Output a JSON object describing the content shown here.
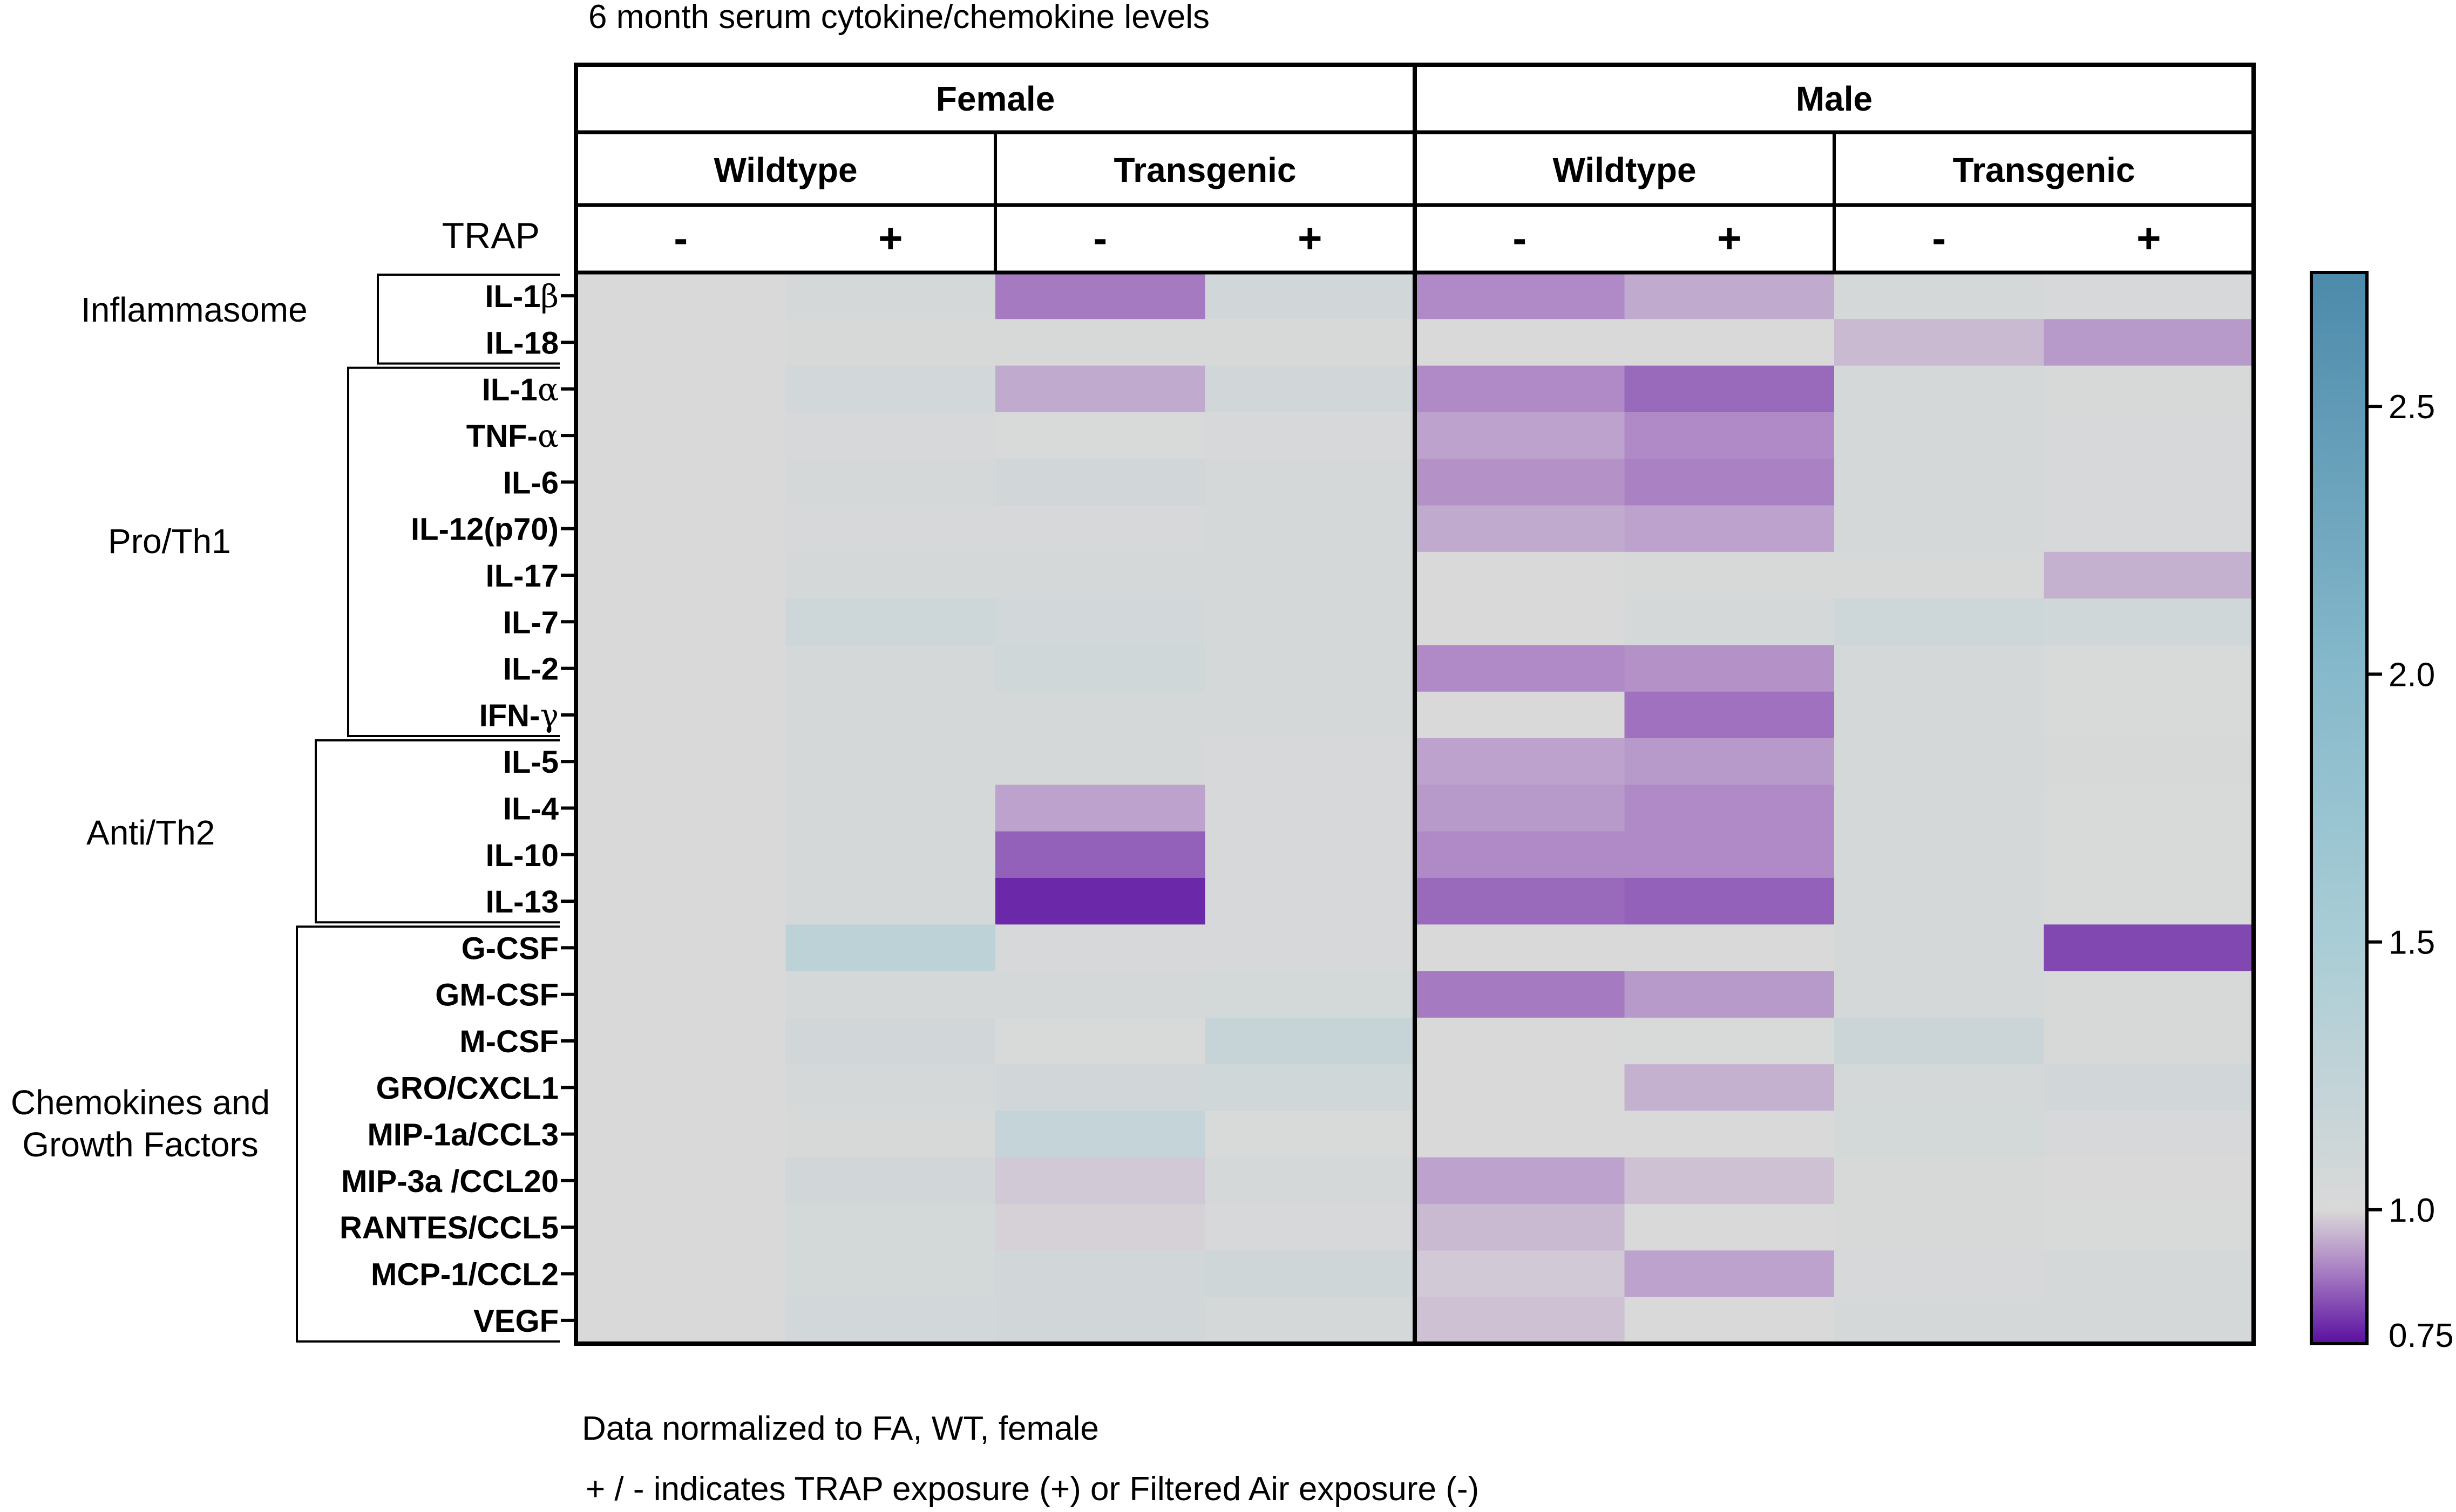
{
  "chart_data": {
    "type": "heatmap",
    "title": "6 month serum cytokine/chemokine levels",
    "row_label_header": "TRAP",
    "sexes": [
      "Female",
      "Male"
    ],
    "genotypes": [
      "Wildtype",
      "Transgenic",
      "Wildtype",
      "Transgenic"
    ],
    "exposures": [
      "-",
      "+",
      "-",
      "+",
      "-",
      "+",
      "-",
      "+"
    ],
    "rows": [
      "IL-1β",
      "IL-18",
      "IL-1α",
      "TNF-α",
      "IL-6",
      "IL-12(p70)",
      "IL-17",
      "IL-7",
      "IL-2",
      "IFN-γ",
      "IL-5",
      "IL-4",
      "IL-10",
      "IL-13",
      "G-CSF",
      "GM-CSF",
      "M-CSF",
      "GRO/CXCL1",
      "MIP-1a/CCL3",
      "MIP-3a /CCL20",
      "RANTES/CCL5",
      "MCP-1/CCL2",
      "VEGF"
    ],
    "groups": [
      {
        "label": "Inflammasome",
        "label_lines": [
          "Inflammasome"
        ],
        "start": 0,
        "end": 1
      },
      {
        "label": "Pro/Th1",
        "label_lines": [
          "Pro/Th1"
        ],
        "start": 2,
        "end": 9
      },
      {
        "label": "Anti/Th2",
        "label_lines": [
          "Anti/Th2"
        ],
        "start": 10,
        "end": 13
      },
      {
        "label": "Chemokines and Growth Factors",
        "label_lines": [
          "Chemokines and",
          "Growth Factors"
        ],
        "start": 14,
        "end": 22
      }
    ],
    "values": [
      [
        1.0,
        1.05,
        0.88,
        1.08,
        0.9,
        0.94,
        1.05,
        1.03
      ],
      [
        1.0,
        1.02,
        1.02,
        1.02,
        1.0,
        1.0,
        0.96,
        0.92
      ],
      [
        1.0,
        1.07,
        0.94,
        1.08,
        0.9,
        0.86,
        1.05,
        1.02
      ],
      [
        1.0,
        1.03,
        1.01,
        1.03,
        0.93,
        0.9,
        1.04,
        1.03
      ],
      [
        1.0,
        1.04,
        1.08,
        1.05,
        0.91,
        0.89,
        1.05,
        1.03
      ],
      [
        1.0,
        1.03,
        1.03,
        1.04,
        0.94,
        0.93,
        1.05,
        1.03
      ],
      [
        1.0,
        1.04,
        1.05,
        1.04,
        1.0,
        1.02,
        1.02,
        0.95
      ],
      [
        1.0,
        1.12,
        1.07,
        1.05,
        1.0,
        1.05,
        1.12,
        1.1
      ],
      [
        1.0,
        1.04,
        1.09,
        1.05,
        0.9,
        0.91,
        1.04,
        1.01
      ],
      [
        1.0,
        1.04,
        1.04,
        1.04,
        1.0,
        0.87,
        1.04,
        1.01
      ],
      [
        1.0,
        1.04,
        1.04,
        1.03,
        0.93,
        0.92,
        1.04,
        1.02
      ],
      [
        1.0,
        1.04,
        0.93,
        1.03,
        0.92,
        0.9,
        1.04,
        1.01
      ],
      [
        1.0,
        1.04,
        0.85,
        1.03,
        0.9,
        0.9,
        1.04,
        1.01
      ],
      [
        1.0,
        1.05,
        0.78,
        1.03,
        0.86,
        0.85,
        1.04,
        1.01
      ],
      [
        1.0,
        1.3,
        1.03,
        1.03,
        1.0,
        1.0,
        1.05,
        0.82
      ],
      [
        1.0,
        1.05,
        1.05,
        1.06,
        0.88,
        0.92,
        1.05,
        1.02
      ],
      [
        1.0,
        1.08,
        1.01,
        1.2,
        1.0,
        1.01,
        1.15,
        1.02
      ],
      [
        1.0,
        1.05,
        1.08,
        1.1,
        1.0,
        0.95,
        1.05,
        1.08
      ],
      [
        1.0,
        1.02,
        1.22,
        1.01,
        1.0,
        1.0,
        1.06,
        1.03
      ],
      [
        1.0,
        1.08,
        0.98,
        1.05,
        0.93,
        0.97,
        1.02,
        1.0
      ],
      [
        1.0,
        1.06,
        0.99,
        1.03,
        0.96,
        1.0,
        1.02,
        1.01
      ],
      [
        1.0,
        1.06,
        1.08,
        1.11,
        0.98,
        0.93,
        1.03,
        1.04
      ],
      [
        1.0,
        1.07,
        1.08,
        1.05,
        0.97,
        1.0,
        1.04,
        1.04
      ]
    ],
    "colorbar": {
      "min": 0.75,
      "max": 2.75,
      "ticks": [
        0.75,
        1.0,
        1.5,
        2.0,
        2.5
      ],
      "tick_labels": [
        "0.75",
        "1.0",
        "1.5",
        "2.0",
        "2.5"
      ],
      "stops": [
        {
          "value": 0.75,
          "color": "#5a0fa0"
        },
        {
          "value": 0.9,
          "color": "#b08ac6"
        },
        {
          "value": 1.0,
          "color": "#d9d9d9"
        },
        {
          "value": 1.5,
          "color": "#a9cdd6"
        },
        {
          "value": 2.0,
          "color": "#86b9cb"
        },
        {
          "value": 2.75,
          "color": "#4c8aab"
        }
      ]
    },
    "footnotes": [
      "Data normalized to FA, WT, female",
      "+ / - indicates TRAP exposure (+) or Filtered Air exposure (-)"
    ]
  }
}
